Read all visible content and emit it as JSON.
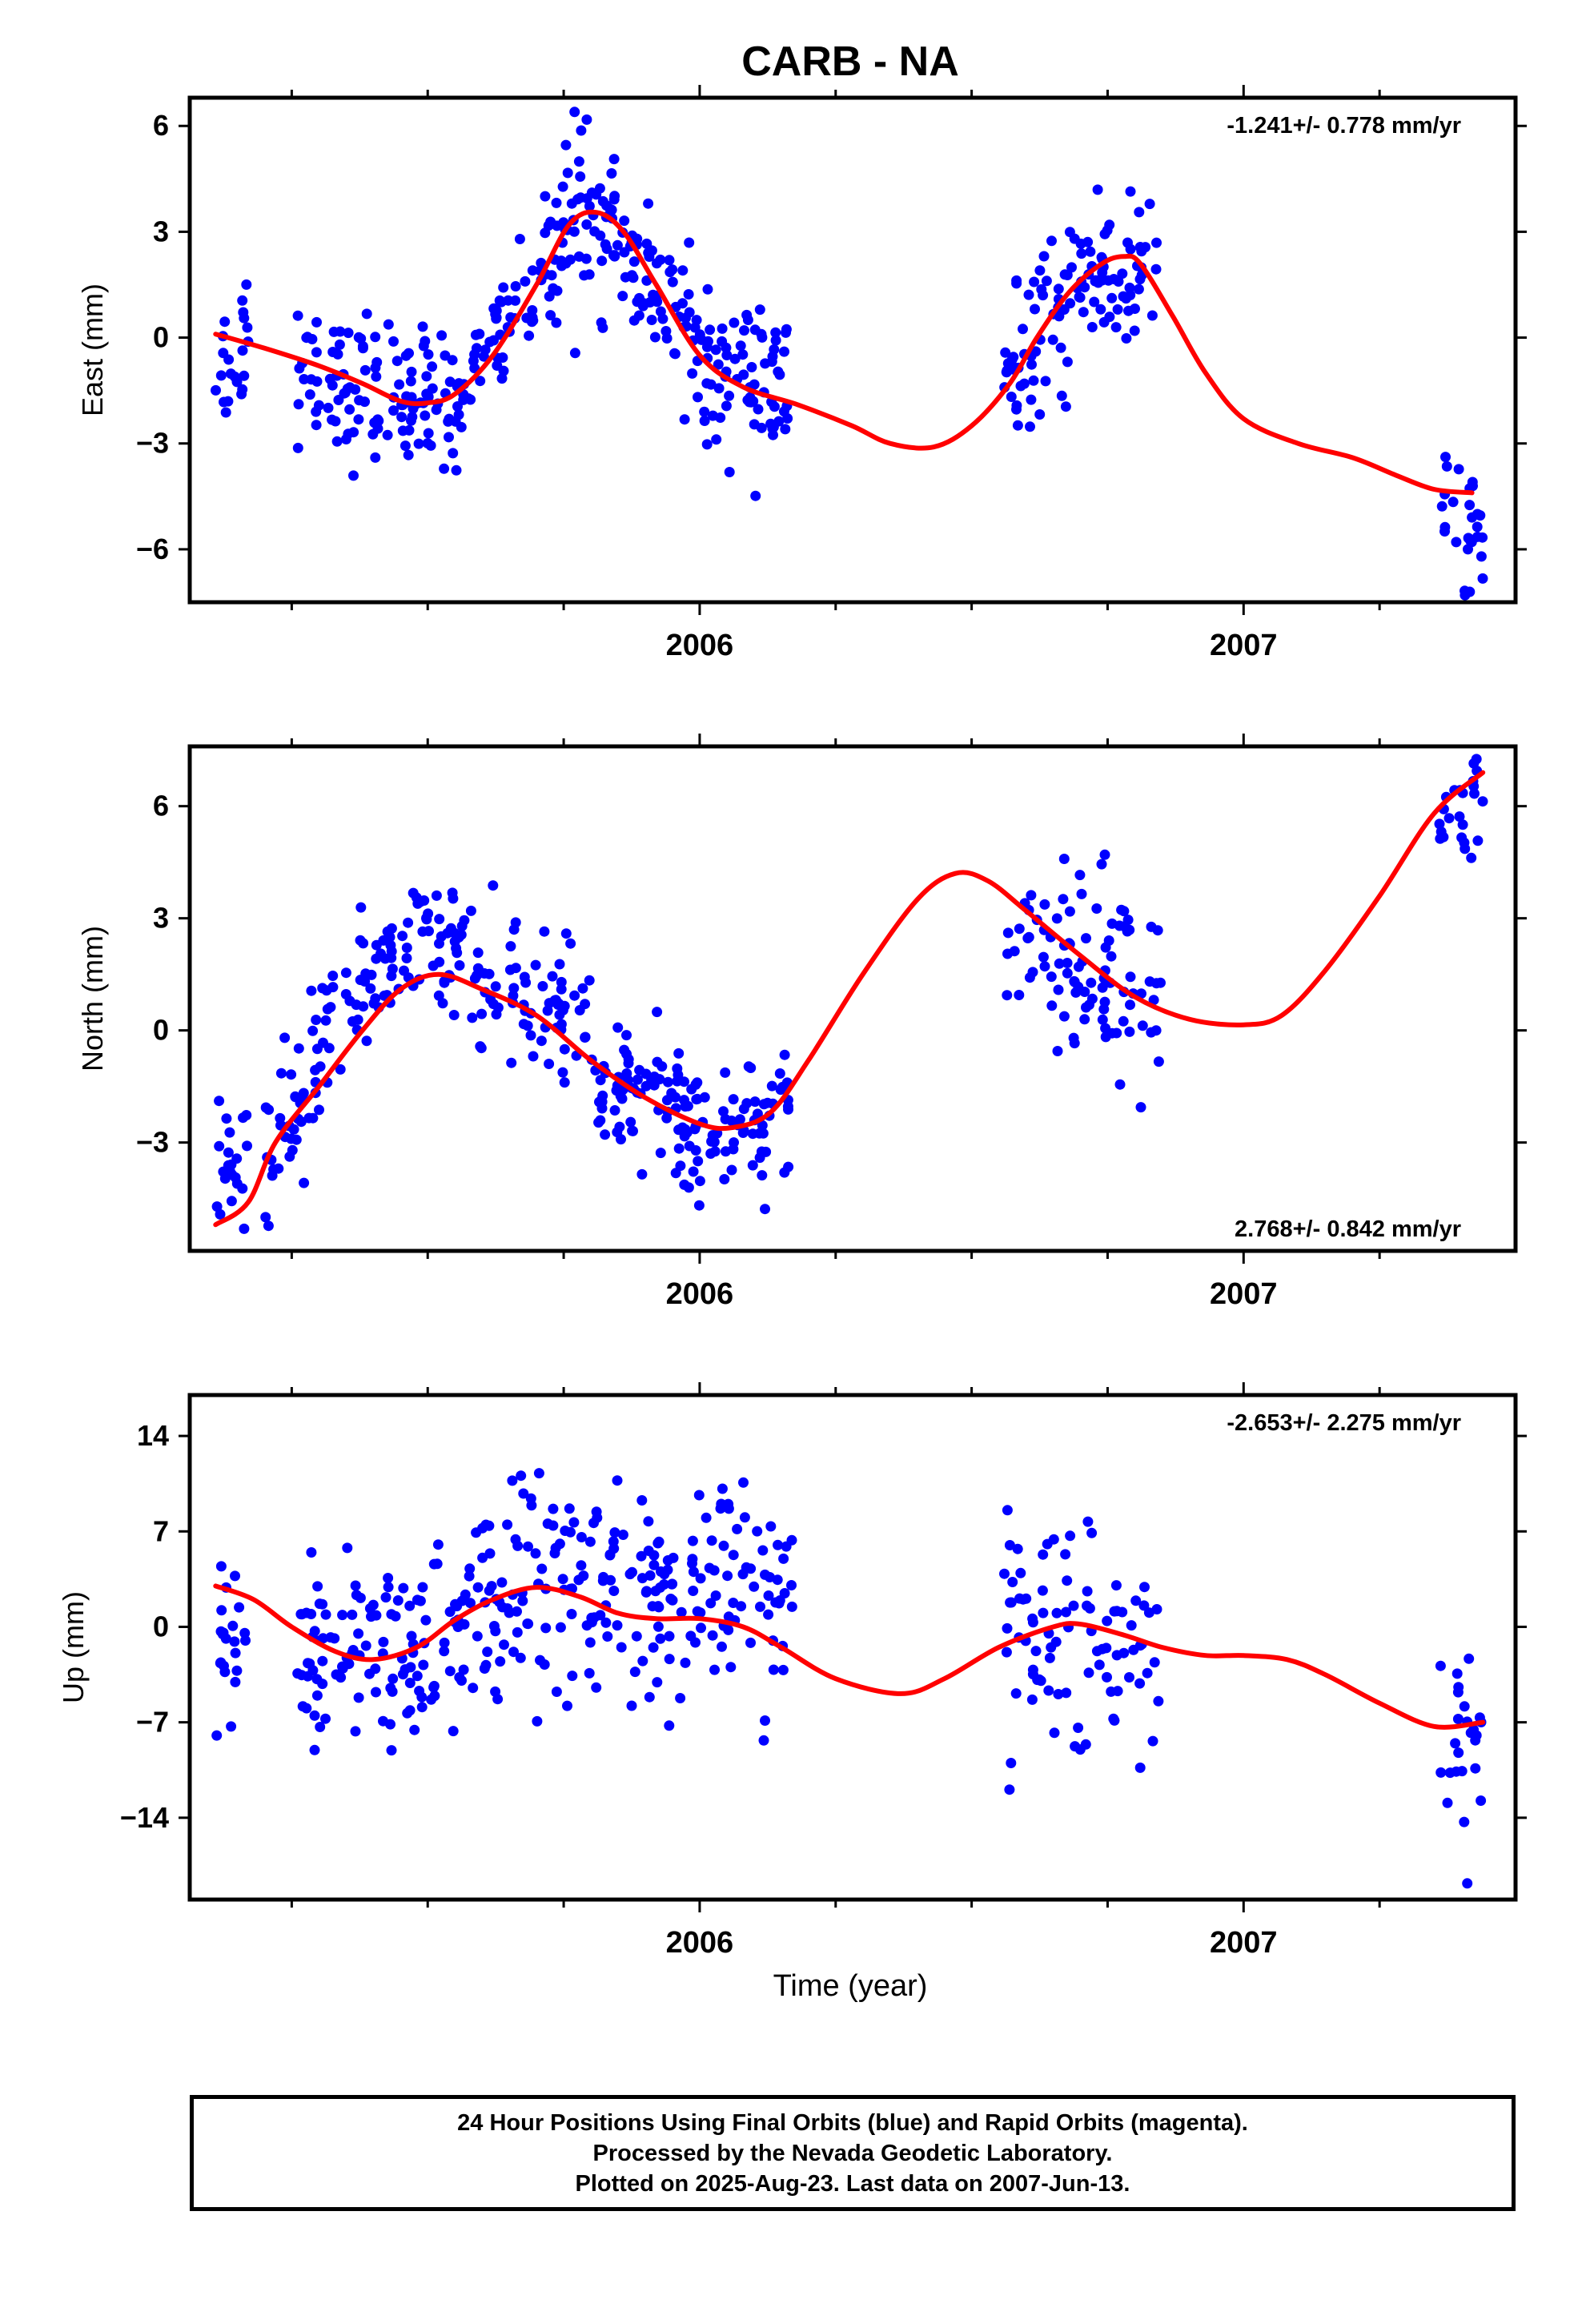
{
  "title": "CARB - NA",
  "xlabel": "Time (year)",
  "footer": [
    "24 Hour Positions Using Final Orbits (blue) and Rapid Orbits (magenta).",
    "Processed by the Nevada Geodetic Laboratory.",
    "Plotted on 2025-Aug-23. Last data on 2007-Jun-13."
  ],
  "colors": {
    "points": "#0000ff",
    "fit": "#ff0000",
    "frame": "#000000"
  },
  "chart_data": [
    {
      "type": "scatter",
      "ylabel": "East (mm)",
      "rate_text": "-1.241+/- 0.778 mm/yr",
      "xlim": [
        2005.0625,
        2007.5
      ],
      "ylim": [
        -7.5,
        6.8
      ],
      "yticks": [
        6,
        3,
        0,
        -3,
        -6
      ],
      "ytick_labels": [
        "6",
        "3",
        "0",
        "−3",
        "−6"
      ],
      "xticks": [
        2006,
        2007
      ],
      "xtick_labels": [
        "2006",
        "2007"
      ],
      "fit_curve": [
        [
          2005.11,
          0.1
        ],
        [
          2005.2,
          -0.3
        ],
        [
          2005.3,
          -0.8
        ],
        [
          2005.38,
          -1.3
        ],
        [
          2005.45,
          -1.8
        ],
        [
          2005.5,
          -1.85
        ],
        [
          2005.55,
          -1.6
        ],
        [
          2005.62,
          -0.5
        ],
        [
          2005.7,
          1.5
        ],
        [
          2005.76,
          3.2
        ],
        [
          2005.81,
          3.55
        ],
        [
          2005.86,
          3.0
        ],
        [
          2005.92,
          1.5
        ],
        [
          2006.0,
          -0.5
        ],
        [
          2006.08,
          -1.4
        ],
        [
          2006.18,
          -1.9
        ],
        [
          2006.28,
          -2.5
        ],
        [
          2006.35,
          -3.0
        ],
        [
          2006.43,
          -3.1
        ],
        [
          2006.5,
          -2.5
        ],
        [
          2006.57,
          -1.3
        ],
        [
          2006.62,
          0.0
        ],
        [
          2006.68,
          1.3
        ],
        [
          2006.74,
          2.1
        ],
        [
          2006.78,
          2.3
        ],
        [
          2006.81,
          2.1
        ],
        [
          2006.87,
          0.6
        ],
        [
          2006.93,
          -1.0
        ],
        [
          2007.0,
          -2.3
        ],
        [
          2007.1,
          -3.0
        ],
        [
          2007.2,
          -3.4
        ],
        [
          2007.28,
          -3.9
        ],
        [
          2007.35,
          -4.3
        ],
        [
          2007.42,
          -4.4
        ]
      ],
      "clusters": [
        {
          "x0": 2005.11,
          "x1": 2005.17,
          "y0": -1.2,
          "y1": 0.3,
          "s": 1.0,
          "n": 22
        },
        {
          "x0": 2005.26,
          "x1": 2005.56,
          "y0": -1.5,
          "y1": -1.5,
          "s": 1.0,
          "n": 120
        },
        {
          "x0": 2005.56,
          "x1": 2005.77,
          "y0": -1.2,
          "y1": 3.2,
          "s": 0.9,
          "n": 80
        },
        {
          "x0": 2005.77,
          "x1": 2005.87,
          "y0": 3.4,
          "y1": 2.8,
          "s": 1.1,
          "n": 45
        },
        {
          "x0": 2005.87,
          "x1": 2006.0,
          "y0": 2.3,
          "y1": -0.5,
          "s": 1.0,
          "n": 55
        },
        {
          "x0": 2006.0,
          "x1": 2006.17,
          "y0": -1.0,
          "y1": -1.5,
          "s": 1.1,
          "n": 75
        },
        {
          "x0": 2006.56,
          "x1": 2006.68,
          "y0": -1.5,
          "y1": 1.0,
          "s": 1.1,
          "n": 55
        },
        {
          "x0": 2006.68,
          "x1": 2006.84,
          "y0": 1.5,
          "y1": 2.0,
          "s": 1.2,
          "n": 65
        },
        {
          "x0": 2007.36,
          "x1": 2007.44,
          "y0": -5.0,
          "y1": -5.8,
          "s": 1.1,
          "n": 28
        }
      ]
    },
    {
      "type": "scatter",
      "ylabel": "North (mm)",
      "rate_text": "2.768+/- 0.842 mm/yr",
      "xlim": [
        2005.0625,
        2007.5
      ],
      "ylim": [
        -5.9,
        7.6
      ],
      "yticks": [
        6,
        3,
        0,
        -3
      ],
      "ytick_labels": [
        "6",
        "3",
        "0",
        "−3"
      ],
      "xticks": [
        2006,
        2007
      ],
      "xtick_labels": [
        "2006",
        "2007"
      ],
      "fit_curve": [
        [
          2005.11,
          -5.2
        ],
        [
          2005.17,
          -4.6
        ],
        [
          2005.22,
          -3.0
        ],
        [
          2005.3,
          -1.5
        ],
        [
          2005.38,
          0.0
        ],
        [
          2005.45,
          1.1
        ],
        [
          2005.52,
          1.5
        ],
        [
          2005.6,
          1.1
        ],
        [
          2005.7,
          0.4
        ],
        [
          2005.8,
          -0.8
        ],
        [
          2005.9,
          -1.8
        ],
        [
          2006.0,
          -2.5
        ],
        [
          2006.06,
          -2.6
        ],
        [
          2006.13,
          -2.2
        ],
        [
          2006.2,
          -0.8
        ],
        [
          2006.3,
          1.5
        ],
        [
          2006.4,
          3.5
        ],
        [
          2006.47,
          4.2
        ],
        [
          2006.53,
          4.0
        ],
        [
          2006.6,
          3.2
        ],
        [
          2006.7,
          2.0
        ],
        [
          2006.8,
          0.9
        ],
        [
          2006.9,
          0.3
        ],
        [
          2007.0,
          0.15
        ],
        [
          2007.07,
          0.4
        ],
        [
          2007.15,
          1.6
        ],
        [
          2007.25,
          3.6
        ],
        [
          2007.35,
          5.8
        ],
        [
          2007.44,
          6.9
        ]
      ],
      "clusters": [
        {
          "x0": 2005.11,
          "x1": 2005.17,
          "y0": -4.5,
          "y1": -3.0,
          "s": 0.8,
          "n": 22
        },
        {
          "x0": 2005.2,
          "x1": 2005.3,
          "y0": -3.5,
          "y1": -1.0,
          "s": 1.0,
          "n": 40
        },
        {
          "x0": 2005.3,
          "x1": 2005.45,
          "y0": -0.5,
          "y1": 2.5,
          "s": 0.9,
          "n": 50
        },
        {
          "x0": 2005.45,
          "x1": 2005.58,
          "y0": 2.5,
          "y1": 2.3,
          "s": 0.8,
          "n": 45
        },
        {
          "x0": 2005.58,
          "x1": 2005.8,
          "y0": 1.2,
          "y1": 0.3,
          "s": 0.9,
          "n": 70
        },
        {
          "x0": 2005.8,
          "x1": 2006.0,
          "y0": -1.2,
          "y1": -2.6,
          "s": 1.0,
          "n": 90
        },
        {
          "x0": 2006.0,
          "x1": 2006.17,
          "y0": -3.2,
          "y1": -1.8,
          "s": 0.9,
          "n": 55
        },
        {
          "x0": 2006.56,
          "x1": 2006.85,
          "y0": 2.3,
          "y1": 1.2,
          "s": 1.3,
          "n": 95
        },
        {
          "x0": 2007.36,
          "x1": 2007.44,
          "y0": 4.8,
          "y1": 6.0,
          "s": 0.8,
          "n": 25
        }
      ]
    },
    {
      "type": "scatter",
      "ylabel": "Up (mm)",
      "rate_text": "-2.653+/- 2.275 mm/yr",
      "xlim": [
        2005.0625,
        2007.5
      ],
      "ylim": [
        -20,
        17
      ],
      "yticks": [
        14,
        7,
        0,
        -7,
        -14
      ],
      "ytick_labels": [
        "14",
        "7",
        "0",
        "−7",
        "−14"
      ],
      "xticks": [
        2006,
        2007
      ],
      "xtick_labels": [
        "2006",
        "2007"
      ],
      "fit_curve": [
        [
          2005.11,
          3.0
        ],
        [
          2005.18,
          2.0
        ],
        [
          2005.25,
          0.0
        ],
        [
          2005.33,
          -1.8
        ],
        [
          2005.4,
          -2.4
        ],
        [
          2005.48,
          -1.5
        ],
        [
          2005.55,
          0.5
        ],
        [
          2005.62,
          2.0
        ],
        [
          2005.7,
          2.9
        ],
        [
          2005.78,
          2.2
        ],
        [
          2005.85,
          1.0
        ],
        [
          2005.92,
          0.6
        ],
        [
          2006.0,
          0.6
        ],
        [
          2006.08,
          0.0
        ],
        [
          2006.15,
          -1.5
        ],
        [
          2006.25,
          -3.8
        ],
        [
          2006.37,
          -4.9
        ],
        [
          2006.45,
          -3.8
        ],
        [
          2006.55,
          -1.5
        ],
        [
          2006.65,
          0.0
        ],
        [
          2006.7,
          0.2
        ],
        [
          2006.78,
          -0.6
        ],
        [
          2006.85,
          -1.5
        ],
        [
          2006.93,
          -2.1
        ],
        [
          2007.0,
          -2.1
        ],
        [
          2007.08,
          -2.4
        ],
        [
          2007.15,
          -3.5
        ],
        [
          2007.25,
          -5.6
        ],
        [
          2007.35,
          -7.3
        ],
        [
          2007.44,
          -7.0
        ]
      ],
      "clusters": [
        {
          "x0": 2005.11,
          "x1": 2005.17,
          "y0": -1.5,
          "y1": -4.0,
          "s": 3.5,
          "n": 22
        },
        {
          "x0": 2005.26,
          "x1": 2005.5,
          "y0": -2.0,
          "y1": -2.0,
          "s": 3.5,
          "n": 95
        },
        {
          "x0": 2005.5,
          "x1": 2005.75,
          "y0": -1.0,
          "y1": 4.0,
          "s": 3.8,
          "n": 90
        },
        {
          "x0": 2005.75,
          "x1": 2006.0,
          "y0": 3.0,
          "y1": 1.5,
          "s": 3.8,
          "n": 95
        },
        {
          "x0": 2006.0,
          "x1": 2006.17,
          "y0": 3.0,
          "y1": 1.0,
          "s": 3.8,
          "n": 60
        },
        {
          "x0": 2006.56,
          "x1": 2006.85,
          "y0": 1.5,
          "y1": -2.5,
          "s": 4.0,
          "n": 90
        },
        {
          "x0": 2007.36,
          "x1": 2007.44,
          "y0": -9.0,
          "y1": -6.0,
          "s": 4.0,
          "n": 25
        }
      ]
    }
  ]
}
